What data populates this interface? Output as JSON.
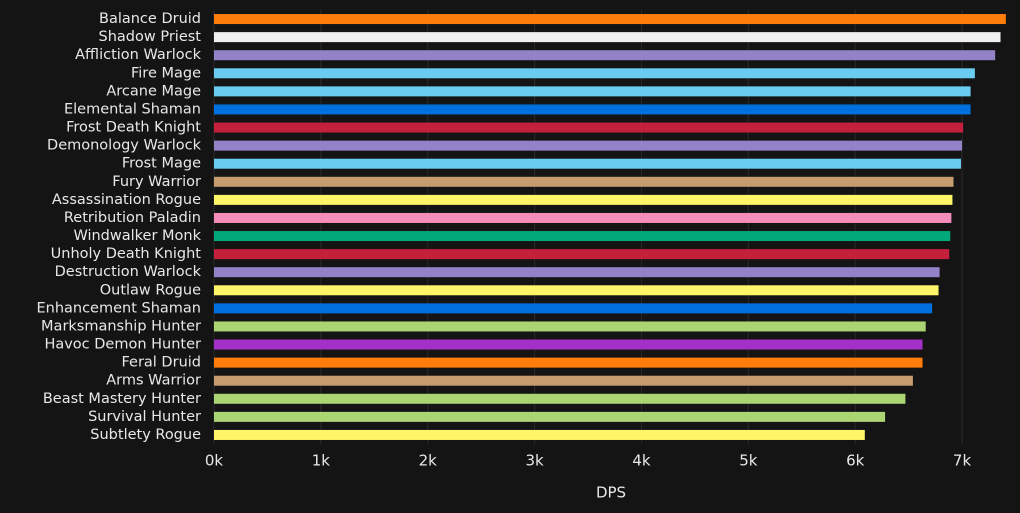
{
  "chart_data": {
    "type": "barh",
    "x_label": "DPS",
    "categories": [
      "Balance Druid",
      "Shadow Priest",
      "Affliction Warlock",
      "Fire Mage",
      "Arcane Mage",
      "Elemental Shaman",
      "Frost Death Knight",
      "Demonology Warlock",
      "Frost Mage",
      "Fury Warrior",
      "Assassination Rogue",
      "Retribution Paladin",
      "Windwalker Monk",
      "Unholy Death Knight",
      "Destruction Warlock",
      "Outlaw Rogue",
      "Enhancement Shaman",
      "Marksmanship Hunter",
      "Havoc Demon Hunter",
      "Feral Druid",
      "Arms Warrior",
      "Beast Mastery Hunter",
      "Survival Hunter",
      "Subtlety Rogue"
    ],
    "values": [
      7410,
      7360,
      7310,
      7120,
      7080,
      7080,
      7010,
      7000,
      6990,
      6920,
      6910,
      6900,
      6890,
      6880,
      6790,
      6780,
      6720,
      6660,
      6630,
      6630,
      6540,
      6470,
      6280,
      6090
    ],
    "colors": [
      "#ff7d0a",
      "#f0f0f0",
      "#9482c9",
      "#69ccf0",
      "#69ccf0",
      "#0070de",
      "#c41f3b",
      "#9482c9",
      "#69ccf0",
      "#c79c6e",
      "#fff569",
      "#f58cba",
      "#00a87a",
      "#c41f3b",
      "#9482c9",
      "#fff569",
      "#0070de",
      "#abd473",
      "#a330c9",
      "#ff7d0a",
      "#c79c6e",
      "#abd473",
      "#abd473",
      "#fff569"
    ],
    "xlim": [
      0,
      7430
    ],
    "xticks": [
      {
        "value": 0,
        "label": "0k"
      },
      {
        "value": 1000,
        "label": "1k"
      },
      {
        "value": 2000,
        "label": "2k"
      },
      {
        "value": 3000,
        "label": "3k"
      },
      {
        "value": 4000,
        "label": "4k"
      },
      {
        "value": 5000,
        "label": "5k"
      },
      {
        "value": 6000,
        "label": "6k"
      },
      {
        "value": 7000,
        "label": "7k"
      }
    ],
    "grid": true
  }
}
